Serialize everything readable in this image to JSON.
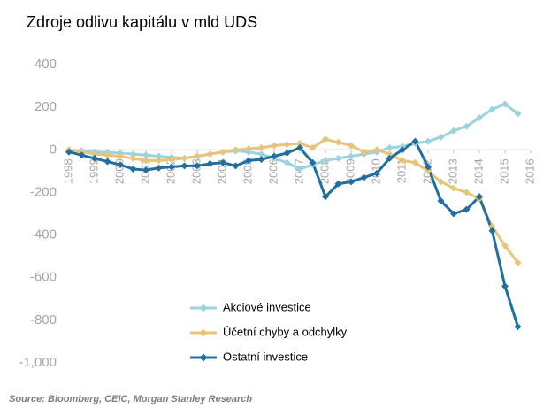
{
  "chart_data": {
    "type": "line",
    "title": "Zdroje odlivu kapitálu v mld UDS",
    "source": "Source: Bloomberg, CEIC, Morgan Stanley Research",
    "x": [
      1998,
      1998.5,
      1999,
      1999.5,
      2000,
      2000.5,
      2001,
      2001.5,
      2002,
      2002.5,
      2003,
      2003.5,
      2004,
      2004.5,
      2005,
      2005.5,
      2006,
      2006.5,
      2007,
      2007.5,
      2008,
      2008.5,
      2009,
      2009.5,
      2010,
      2010.5,
      2011,
      2011.5,
      2012,
      2012.5,
      2013,
      2013.5,
      2014,
      2014.5,
      2015,
      2015.5
    ],
    "series": [
      {
        "name": "Akciové investice",
        "color": "#9dd3dc",
        "values": [
          0,
          -5,
          -10,
          -12,
          -15,
          -20,
          -25,
          -30,
          -35,
          -40,
          -30,
          -20,
          -10,
          -5,
          -10,
          -20,
          -40,
          -60,
          -90,
          -70,
          -50,
          -40,
          -30,
          -20,
          -10,
          10,
          15,
          30,
          40,
          60,
          90,
          110,
          150,
          190,
          215,
          170
        ]
      },
      {
        "name": "Účetní chyby a odchylky",
        "color": "#e6c57a",
        "values": [
          0,
          -10,
          -20,
          -25,
          -30,
          -40,
          -50,
          -50,
          -45,
          -40,
          -30,
          -20,
          -10,
          0,
          5,
          10,
          20,
          25,
          30,
          10,
          50,
          35,
          20,
          -10,
          0,
          -20,
          -50,
          -60,
          -100,
          -150,
          -180,
          -200,
          -230,
          -360,
          -450,
          -530
        ]
      },
      {
        "name": "Ostatní investice",
        "color": "#1f6fa0",
        "values": [
          -10,
          -25,
          -40,
          -55,
          -70,
          -90,
          -95,
          -85,
          -80,
          -75,
          -75,
          -65,
          -60,
          -75,
          -50,
          -45,
          -30,
          -15,
          10,
          -60,
          -220,
          -160,
          -150,
          -130,
          -110,
          -40,
          0,
          40,
          -80,
          -240,
          -300,
          -280,
          -220,
          -380,
          -640,
          -830
        ]
      }
    ],
    "xlim": [
      1998,
      2016
    ],
    "xticks": [
      1998,
      1999,
      2000,
      2001,
      2002,
      2003,
      2004,
      2005,
      2006,
      2007,
      2008,
      2009,
      2010,
      2011,
      2012,
      2013,
      2014,
      2015,
      2016
    ],
    "ylim": [
      -1000,
      400
    ],
    "yticks": [
      400,
      200,
      0,
      -200,
      -400,
      -600,
      -800,
      {
        "value": -1000,
        "label": "-1,000"
      }
    ],
    "grid": false,
    "legend": "lower center"
  }
}
